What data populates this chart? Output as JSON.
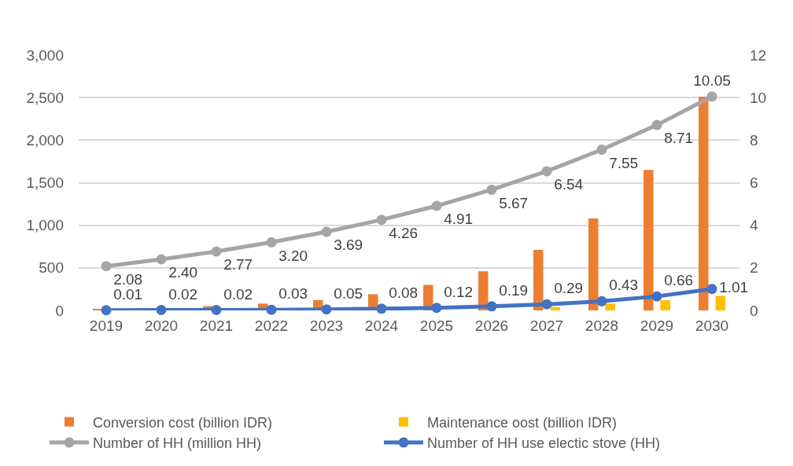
{
  "chart_data": {
    "type": "bar",
    "categories": [
      "2019",
      "2020",
      "2021",
      "2022",
      "2023",
      "2024",
      "2025",
      "2026",
      "2027",
      "2028",
      "2029",
      "2030"
    ],
    "series": [
      {
        "name": "Conversion cost (billion IDR)",
        "color": "#ed7d31",
        "values": [
          10,
          null,
          50,
          80,
          120,
          190,
          300,
          460,
          710,
          1080,
          1650,
          2510
        ]
      },
      {
        "name": "Maintenance oost (billion IDR)",
        "color": "#ffc000",
        "values": [
          null,
          null,
          null,
          null,
          null,
          null,
          null,
          null,
          40,
          80,
          120,
          170
        ]
      },
      {
        "name": "Number of HH (million HH)",
        "type": "line",
        "axis": "y2",
        "color": "#a5a5a5",
        "values": [
          2.08,
          2.4,
          2.77,
          3.2,
          3.69,
          4.26,
          4.91,
          5.67,
          6.54,
          7.55,
          8.71,
          10.05
        ],
        "value_labels": [
          "2.08",
          "2.40",
          "2.77",
          "3.20",
          "3.69",
          "4.26",
          "4.91",
          "5.67",
          "6.54",
          "7.55",
          "8.71",
          "10.05"
        ]
      },
      {
        "name": "Number of HH use electic stove (HH)",
        "type": "line",
        "axis": "y2",
        "color": "#4472c4",
        "values": [
          0.01,
          0.02,
          0.02,
          0.03,
          0.05,
          0.08,
          0.12,
          0.19,
          0.29,
          0.43,
          0.66,
          1.01
        ],
        "value_labels": [
          "0.01",
          "0.02",
          "0.02",
          "0.03",
          "0.05",
          "0.08",
          "0.12",
          "0.19",
          "0.29",
          "0.43",
          "0.66",
          "1.01"
        ]
      }
    ],
    "ylim": [
      0,
      3000
    ],
    "yticks": [
      0,
      {
        "value": 500,
        "label": "500"
      },
      {
        "value": 1000,
        "label": "1,000"
      },
      {
        "value": 1500,
        "label": "1,500"
      },
      {
        "value": 2000,
        "label": "2,000"
      },
      {
        "value": 2500,
        "label": "2,500"
      },
      {
        "value": 3000,
        "label": "3,000"
      }
    ],
    "y2lim": [
      0,
      12
    ],
    "y2ticks": [
      0,
      2,
      4,
      6,
      8,
      10,
      12
    ],
    "grid": "y",
    "legend": "bottom",
    "marker": "circle",
    "line_style": "solid"
  }
}
